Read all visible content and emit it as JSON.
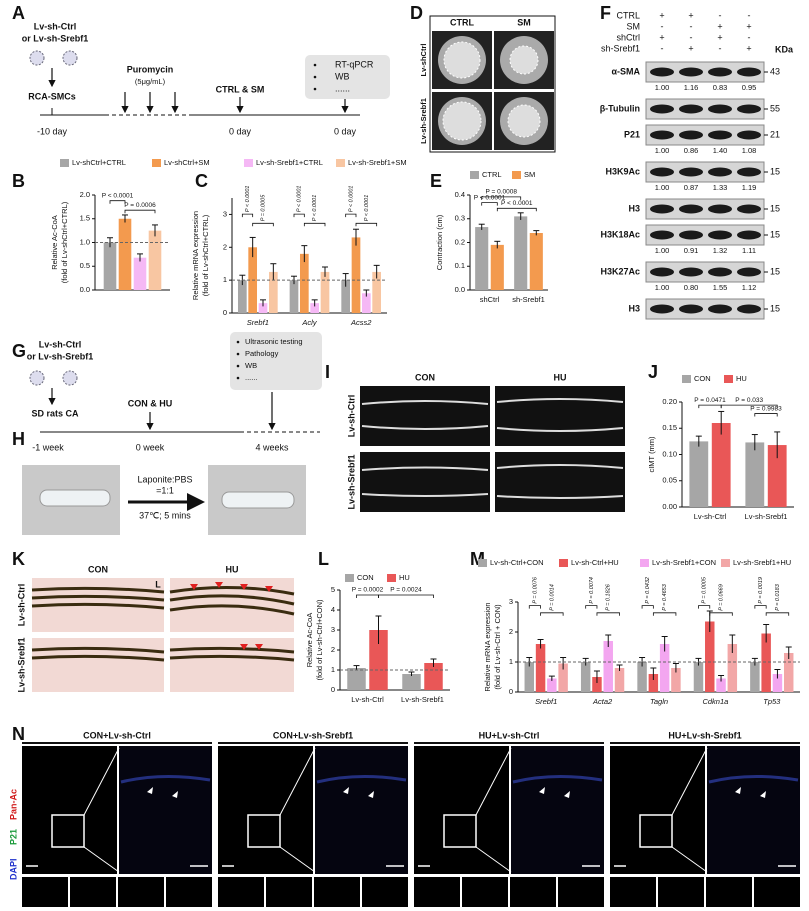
{
  "panel_labels": [
    "A",
    "B",
    "C",
    "D",
    "E",
    "F",
    "G",
    "H",
    "I",
    "J",
    "K",
    "L",
    "M",
    "N"
  ],
  "panel_a": {
    "vector_lines": [
      "Lv-sh-Ctrl",
      "or Lv-sh-Srebf1"
    ],
    "cells": "RCA-SMCs",
    "drug": "Puromycin",
    "dose": "(5μg/mL)",
    "treatment": "CTRL & SM",
    "assays": [
      "RT-qPCR",
      "WB",
      "......"
    ],
    "times": [
      "-10 day",
      "0 day",
      "0 day"
    ]
  },
  "panel_d": {
    "columns": [
      "CTRL",
      "SM"
    ],
    "rows": [
      "Lv-shCtrl",
      "Lv-sh-Srebf1"
    ]
  },
  "blot": {
    "header_rows": [
      {
        "label": "CTRL",
        "signs": [
          "+",
          "+",
          "-",
          "-"
        ]
      },
      {
        "label": "SM",
        "signs": [
          "-",
          "-",
          "+",
          "+"
        ]
      },
      {
        "label": "shCtrl",
        "signs": [
          "+",
          "-",
          "+",
          "-"
        ]
      },
      {
        "label": "sh-Srebf1",
        "signs": [
          "-",
          "+",
          "-",
          "+"
        ]
      }
    ],
    "kda_label": "KDa",
    "bands": [
      {
        "name": "α-SMA",
        "kda": "43",
        "quant": [
          "1.00",
          "1.16",
          "0.83",
          "0.95"
        ]
      },
      {
        "name": "β-Tubulin",
        "kda": "55"
      },
      {
        "name": "P21",
        "kda": "21",
        "quant": [
          "1.00",
          "0.86",
          "1.40",
          "1.08"
        ]
      },
      {
        "name": "H3K9Ac",
        "kda": "15",
        "quant": [
          "1.00",
          "0.87",
          "1.33",
          "1.19"
        ]
      },
      {
        "name": "H3",
        "kda": "15"
      },
      {
        "name": "H3K18Ac",
        "kda": "15",
        "quant": [
          "1.00",
          "0.91",
          "1.32",
          "1.11"
        ]
      },
      {
        "name": "H3K27Ac",
        "kda": "15",
        "quant": [
          "1.00",
          "0.80",
          "1.55",
          "1.12"
        ]
      },
      {
        "name": "H3",
        "kda": "15"
      }
    ]
  },
  "panel_g": {
    "vector_lines": [
      "Lv-sh-Ctrl",
      "or Lv-sh-Srebf1"
    ],
    "animals": "SD rats CA",
    "treatment": "CON & HU",
    "assays": [
      "Ultrasonic testing",
      "Pathology",
      "WB",
      "......"
    ],
    "times": [
      "-1 week",
      "0 week",
      "4 weeks"
    ]
  },
  "panel_h": {
    "ratio": [
      "Laponite:PBS",
      "=1:1"
    ],
    "condition": "37℃; 5 mins"
  },
  "panel_i": {
    "columns": [
      "CON",
      "HU"
    ],
    "rows": [
      "Lv-sh-Ctrl",
      "Lv-sh-Srebf1"
    ]
  },
  "panel_k": {
    "columns": [
      "CON",
      "HU"
    ],
    "rows": [
      "Lv-sh-Ctrl",
      "Lv-sh-Srebf1"
    ],
    "lumen": "L"
  },
  "panel_n": {
    "columns": [
      "CON+Lv-sh-Ctrl",
      "CON+Lv-sh-Srebf1",
      "HU+Lv-sh-Ctrl",
      "HU+Lv-sh-Srebf1"
    ],
    "channels": [
      "DAPI",
      "P21",
      "Pan-Ac"
    ]
  },
  "chart_data": [
    {
      "type": "bar",
      "ylabel": [
        "Relative Ac-CoA",
        "(fold of Lv-shCtrl+CTRL)"
      ],
      "categories": [
        null
      ],
      "series": [
        {
          "name": "Lv-shCtrl+CTRL",
          "color": "#a6a6a6",
          "values": [
            1.0
          ],
          "errors": [
            0.1
          ]
        },
        {
          "name": "Lv-shCtrl+SM",
          "color": "#f39a4e",
          "values": [
            1.5
          ],
          "errors": [
            0.08
          ]
        },
        {
          "name": "Lv-sh-Srebf1+CTRL",
          "color": "#f5b8f5",
          "values": [
            0.68
          ],
          "errors": [
            0.08
          ]
        },
        {
          "name": "Lv-sh-Srebf1+SM",
          "color": "#f8c6a2",
          "values": [
            1.25
          ],
          "errors": [
            0.12
          ]
        }
      ],
      "ylim": [
        0,
        2
      ],
      "yticks": [
        {
          "value": 0,
          "label": "0.0"
        },
        0.5,
        {
          "value": 1,
          "label": "1.0"
        },
        1.5,
        {
          "value": 2,
          "label": "2.0"
        }
      ],
      "ref_line": 1,
      "annotations": [
        "P < 0.0001",
        "P = 0.0006"
      ]
    },
    {
      "type": "bar",
      "ylabel": [
        "Relative mRNA expression",
        "(fold of Lv-shCtrl+CTRL)"
      ],
      "categories": [
        "Srebf1",
        "Acly",
        "Acss2"
      ],
      "series": [
        {
          "color": "#a6a6a6",
          "values": [
            1.0,
            1.0,
            1.0
          ],
          "errors": [
            0.15,
            0.12,
            0.2
          ]
        },
        {
          "color": "#f39a4e",
          "values": [
            2.0,
            1.8,
            2.3
          ],
          "errors": [
            0.3,
            0.25,
            0.25
          ]
        },
        {
          "color": "#f5b8f5",
          "values": [
            0.3,
            0.3,
            0.6
          ],
          "errors": [
            0.1,
            0.1,
            0.1
          ]
        },
        {
          "color": "#f8c6a2",
          "values": [
            1.25,
            1.25,
            1.25
          ],
          "errors": [
            0.25,
            0.15,
            0.2
          ]
        }
      ],
      "ylim": [
        0,
        3.5
      ],
      "yticks": [
        0,
        1,
        2,
        3
      ],
      "ref_line": 1,
      "annotations": [
        "P < 0.0001",
        "P = 0.0005",
        "P < 0.0001",
        "P < 0.0001",
        "P < 0.0001",
        "P < 0.0001"
      ]
    },
    {
      "type": "bar",
      "ylabel": [
        "Contraction (cm)"
      ],
      "categories": [
        "shCtrl",
        "sh-Srebf1"
      ],
      "series": [
        {
          "name": "CTRL",
          "color": "#a6a6a6",
          "values": [
            0.265,
            0.31
          ],
          "errors": [
            0.012,
            0.015
          ]
        },
        {
          "name": "SM",
          "color": "#f39a4e",
          "values": [
            0.19,
            0.24
          ],
          "errors": [
            0.015,
            0.01
          ]
        }
      ],
      "ylim": [
        0,
        0.4
      ],
      "yticks": [
        {
          "value": 0,
          "label": "0.0"
        },
        0.1,
        0.2,
        0.3,
        0.4
      ],
      "annotations": [
        "P < 0.0001",
        "P = 0.0008",
        "P < 0.0001"
      ]
    },
    {
      "type": "bar",
      "ylabel": [
        "cIMT (mm)"
      ],
      "categories": [
        "Lv-sh-Ctrl",
        "Lv-sh-Srebf1"
      ],
      "series": [
        {
          "name": "CON",
          "color": "#a6a6a6",
          "values": [
            0.125,
            0.123
          ],
          "errors": [
            0.01,
            0.015
          ]
        },
        {
          "name": "HU",
          "color": "#e95757",
          "values": [
            0.16,
            0.118
          ],
          "errors": [
            0.022,
            0.025
          ]
        }
      ],
      "ylim": [
        0,
        0.2
      ],
      "yticks": [
        {
          "value": 0,
          "label": "0.00"
        },
        0.05,
        {
          "value": 0.1,
          "label": "0.10"
        },
        0.15,
        {
          "value": 0.2,
          "label": "0.20"
        }
      ],
      "annotations": [
        "P = 0.0471",
        "P = 0.033",
        "P = 0.9983"
      ]
    },
    {
      "type": "bar",
      "ylabel": [
        "Relative Ac-CoA",
        "(fold of Lv-sh-Ctrl+CON)"
      ],
      "categories": [
        "Lv-sh-Ctrl",
        "Lv-sh-Srebf1"
      ],
      "series": [
        {
          "name": "CON",
          "color": "#a6a6a6",
          "values": [
            1.1,
            0.8
          ],
          "errors": [
            0.12,
            0.1
          ]
        },
        {
          "name": "HU",
          "color": "#e95757",
          "values": [
            3.0,
            1.35
          ],
          "errors": [
            0.7,
            0.2
          ]
        }
      ],
      "ylim": [
        0,
        5
      ],
      "yticks": [
        0,
        1,
        2,
        3,
        4,
        5
      ],
      "ref_line": 1,
      "annotations": [
        "P = 0.0002",
        "P = 0.0024"
      ]
    },
    {
      "type": "bar",
      "ylabel": [
        "Relative mRNA expression",
        "(fold of Lv-sh-Ctrl + CON)"
      ],
      "categories": [
        "Srebf1",
        "Acta2",
        "Tagln",
        "Cdkn1a",
        "Tp53"
      ],
      "series": [
        {
          "name": "Lv-sh-Ctrl+CON",
          "color": "#a6a6a6",
          "values": [
            1.0,
            1.0,
            1.0,
            1.0,
            1.0
          ],
          "errors": [
            0.15,
            0.12,
            0.15,
            0.12,
            0.12
          ]
        },
        {
          "name": "Lv-sh-Ctrl+HU",
          "color": "#e95757",
          "values": [
            1.6,
            0.5,
            0.6,
            2.35,
            1.95
          ],
          "errors": [
            0.15,
            0.2,
            0.2,
            0.35,
            0.3
          ]
        },
        {
          "name": "Lv-sh-Srebf1+CON",
          "color": "#f3a6f0",
          "values": [
            0.45,
            1.7,
            1.6,
            0.45,
            0.6
          ],
          "errors": [
            0.08,
            0.2,
            0.25,
            0.1,
            0.15
          ]
        },
        {
          "name": "Lv-sh-Srebf1+HU",
          "color": "#f2a7a7",
          "values": [
            0.95,
            0.8,
            0.8,
            1.6,
            1.3
          ],
          "errors": [
            0.2,
            0.1,
            0.15,
            0.3,
            0.2
          ]
        }
      ],
      "ylim": [
        0,
        3
      ],
      "yticks": [
        0,
        1,
        2,
        3
      ],
      "ref_line": 1,
      "annotations": [
        "P = 0.0076",
        "P = 0.0014",
        "P = 0.0074",
        "P = 0.1826",
        "P = 0.0432",
        "P = 0.4653",
        "P = 0.0005",
        "P = 0.0669",
        "P = 0.0019",
        "P = 0.0183"
      ]
    }
  ]
}
